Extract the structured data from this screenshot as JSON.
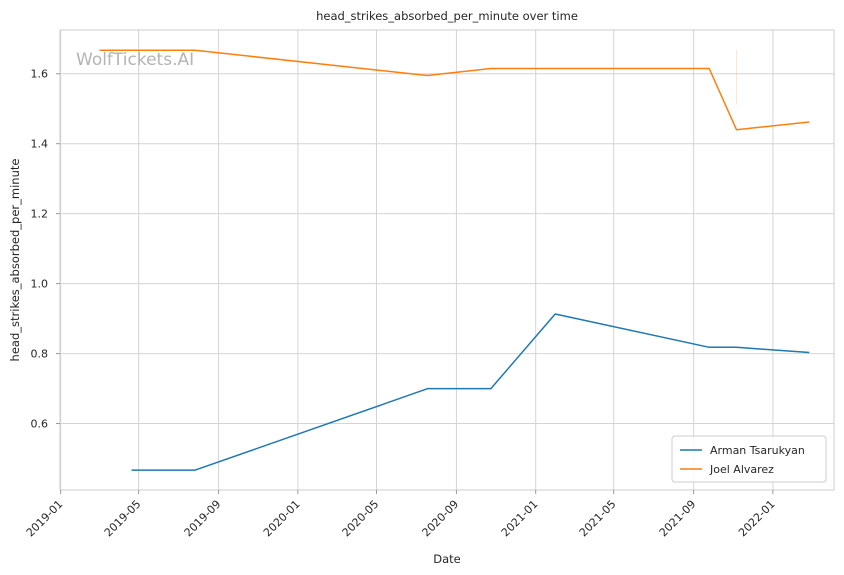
{
  "chart_data": {
    "type": "line",
    "title": "head_strikes_absorbed_per_minute over time",
    "xlabel": "Date",
    "ylabel": "head_strikes_absorbed_per_minute",
    "watermark": "WolfTickets.AI",
    "x_range": [
      "2018-12-31",
      "2022-04-05"
    ],
    "ylim": [
      0.41,
      1.725
    ],
    "x_ticks": [
      "2019-01",
      "2019-05",
      "2019-09",
      "2020-01",
      "2020-05",
      "2020-09",
      "2021-01",
      "2021-05",
      "2021-09",
      "2022-01"
    ],
    "y_ticks": [
      0.6,
      0.8,
      1.0,
      1.2,
      1.4,
      1.6
    ],
    "y_tick_labels": [
      "0.6",
      "0.8",
      "1.0",
      "1.2",
      "1.4",
      "1.6"
    ],
    "grid": true,
    "legend_position": "lower-right",
    "series": [
      {
        "name": "Arman Tsarukyan",
        "color": "#1f77b4",
        "points": [
          {
            "x": "2019-04-20",
            "y": 0.467
          },
          {
            "x": "2019-07-27",
            "y": 0.467
          },
          {
            "x": "2020-07-19",
            "y": 0.7
          },
          {
            "x": "2020-10-24",
            "y": 0.7
          },
          {
            "x": "2021-01-31",
            "y": 0.913
          },
          {
            "x": "2021-09-25",
            "y": 0.818
          },
          {
            "x": "2021-11-06",
            "y": 0.818
          },
          {
            "x": "2022-02-26",
            "y": 0.803
          }
        ]
      },
      {
        "name": "Joel Alvarez",
        "color": "#ff7f0e",
        "points": [
          {
            "x": "2019-03-02",
            "y": 1.667
          },
          {
            "x": "2019-07-27",
            "y": 1.667
          },
          {
            "x": "2020-07-18",
            "y": 1.595
          },
          {
            "x": "2020-10-24",
            "y": 1.615
          },
          {
            "x": "2021-09-25",
            "y": 1.615
          },
          {
            "x": "2021-11-06",
            "y": 1.44
          },
          {
            "x": "2022-02-26",
            "y": 1.462
          }
        ]
      }
    ]
  }
}
